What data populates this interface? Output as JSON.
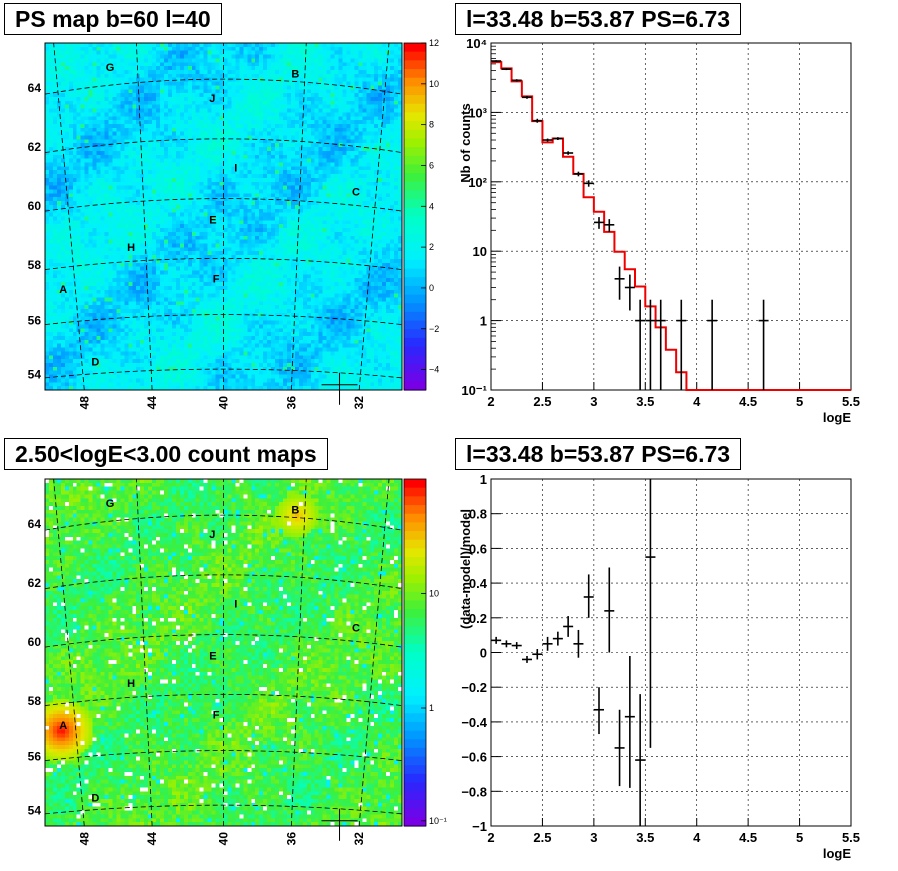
{
  "titles": {
    "ps_map": "PS map b=60 l=40",
    "spectrum": "l=33.48 b=53.87 PS=6.73",
    "count_map": "2.50<logE<3.00 count maps",
    "residual": "l=33.48 b=53.87 PS=6.73"
  },
  "colors": {
    "model_line": "#ee0000",
    "data_points": "#000000",
    "map_background": "#00ffff",
    "grid": "#000000"
  },
  "sky_map": {
    "lat_ticks": [
      "54",
      "56",
      "58",
      "60",
      "62",
      "64"
    ],
    "lon_ticks": [
      "48",
      "44",
      "40",
      "36",
      "32"
    ],
    "source_labels": [
      "A",
      "B",
      "C",
      "D",
      "E",
      "F",
      "G",
      "H",
      "I",
      "J"
    ]
  },
  "ps_colorbar": {
    "range": [
      -5,
      12
    ],
    "ticks": [
      "12",
      "10",
      "8",
      "6",
      "4",
      "2",
      "0",
      "−2",
      "−4"
    ]
  },
  "count_colorbar": {
    "scale": "log",
    "ticks": [
      "10",
      "1",
      "10⁻¹"
    ]
  },
  "chart_data": [
    {
      "type": "line",
      "xlabel": "logE",
      "ylabel": "Nb of counts",
      "xlim": [
        2,
        5.5
      ],
      "ylim": [
        0.1,
        10000
      ],
      "yscale": "log",
      "grid": true,
      "x_ticks": [
        "2",
        "2.5",
        "3",
        "3.5",
        "4",
        "4.5",
        "5",
        "5.5"
      ],
      "y_ticks": [
        "10⁻¹",
        "1",
        "10",
        "10²",
        "10³",
        "10⁴"
      ],
      "model_step": {
        "edges": [
          2.0,
          2.1,
          2.2,
          2.3,
          2.4,
          2.5,
          2.6,
          2.7,
          2.8,
          2.9,
          3.0,
          3.1,
          3.2,
          3.3,
          3.4,
          3.5,
          3.6,
          3.7,
          3.8,
          3.9,
          4.0,
          5.5
        ],
        "values": [
          5300,
          4300,
          2800,
          1700,
          750,
          370,
          420,
          230,
          130,
          60,
          37,
          19,
          9.8,
          5.5,
          3.1,
          1.6,
          0.8,
          0.38,
          0.18,
          0.1,
          0.1
        ]
      },
      "points": [
        {
          "x": 2.05,
          "y": 5500,
          "lo": 5350,
          "hi": 5650
        },
        {
          "x": 2.15,
          "y": 4200,
          "lo": 4070,
          "hi": 4330
        },
        {
          "x": 2.25,
          "y": 2900,
          "lo": 2790,
          "hi": 3010
        },
        {
          "x": 2.35,
          "y": 1650,
          "lo": 1570,
          "hi": 1730
        },
        {
          "x": 2.45,
          "y": 760,
          "lo": 710,
          "hi": 810
        },
        {
          "x": 2.55,
          "y": 400,
          "lo": 380,
          "hi": 420
        },
        {
          "x": 2.65,
          "y": 420,
          "lo": 400,
          "hi": 440
        },
        {
          "x": 2.75,
          "y": 260,
          "lo": 245,
          "hi": 275
        },
        {
          "x": 2.85,
          "y": 130,
          "lo": 120,
          "hi": 140
        },
        {
          "x": 2.95,
          "y": 95,
          "lo": 85,
          "hi": 105
        },
        {
          "x": 3.05,
          "y": 26,
          "lo": 21,
          "hi": 31
        },
        {
          "x": 3.15,
          "y": 24,
          "lo": 19,
          "hi": 29
        },
        {
          "x": 3.25,
          "y": 4,
          "lo": 2,
          "hi": 6
        },
        {
          "x": 3.35,
          "y": 3,
          "lo": 1.4,
          "hi": 4.6
        },
        {
          "x": 3.45,
          "y": 1,
          "lo": 0.1,
          "hi": 2
        },
        {
          "x": 3.55,
          "y": 1,
          "lo": 0.1,
          "hi": 2
        },
        {
          "x": 3.65,
          "y": 1,
          "lo": 0.1,
          "hi": 2
        },
        {
          "x": 3.85,
          "y": 1,
          "lo": 0.1,
          "hi": 2
        },
        {
          "x": 4.15,
          "y": 1,
          "lo": 0.1,
          "hi": 2
        },
        {
          "x": 4.65,
          "y": 1,
          "lo": 0.1,
          "hi": 2
        }
      ]
    },
    {
      "type": "scatter",
      "xlabel": "logE",
      "ylabel": "(data-model)/model",
      "xlim": [
        2,
        5.5
      ],
      "ylim": [
        -1,
        1
      ],
      "grid": true,
      "x_ticks": [
        "2",
        "2.5",
        "3",
        "3.5",
        "4",
        "4.5",
        "5",
        "5.5"
      ],
      "y_ticks": [
        "−1",
        "−0.8",
        "−0.6",
        "−0.4",
        "−0.2",
        "0",
        "0.2",
        "0.4",
        "0.6",
        "0.8",
        "1"
      ],
      "points": [
        {
          "x": 2.05,
          "y": 0.07,
          "lo": 0.05,
          "hi": 0.09
        },
        {
          "x": 2.15,
          "y": 0.05,
          "lo": 0.03,
          "hi": 0.07
        },
        {
          "x": 2.25,
          "y": 0.04,
          "lo": 0.02,
          "hi": 0.06
        },
        {
          "x": 2.35,
          "y": -0.04,
          "lo": -0.06,
          "hi": -0.02
        },
        {
          "x": 2.45,
          "y": -0.01,
          "lo": -0.04,
          "hi": 0.02
        },
        {
          "x": 2.55,
          "y": 0.05,
          "lo": 0.01,
          "hi": 0.09
        },
        {
          "x": 2.65,
          "y": 0.08,
          "lo": 0.04,
          "hi": 0.12
        },
        {
          "x": 2.75,
          "y": 0.15,
          "lo": 0.09,
          "hi": 0.21
        },
        {
          "x": 2.85,
          "y": 0.05,
          "lo": -0.03,
          "hi": 0.13
        },
        {
          "x": 2.95,
          "y": 0.32,
          "lo": 0.2,
          "hi": 0.45
        },
        {
          "x": 3.05,
          "y": -0.33,
          "lo": -0.47,
          "hi": -0.2
        },
        {
          "x": 3.15,
          "y": 0.24,
          "lo": 0.0,
          "hi": 0.49
        },
        {
          "x": 3.25,
          "y": -0.55,
          "lo": -0.77,
          "hi": -0.33
        },
        {
          "x": 3.35,
          "y": -0.37,
          "lo": -0.78,
          "hi": -0.02
        },
        {
          "x": 3.45,
          "y": -0.62,
          "lo": -1.0,
          "hi": -0.24
        },
        {
          "x": 3.55,
          "y": 0.55,
          "lo": -0.55,
          "hi": 1.0
        }
      ]
    }
  ]
}
